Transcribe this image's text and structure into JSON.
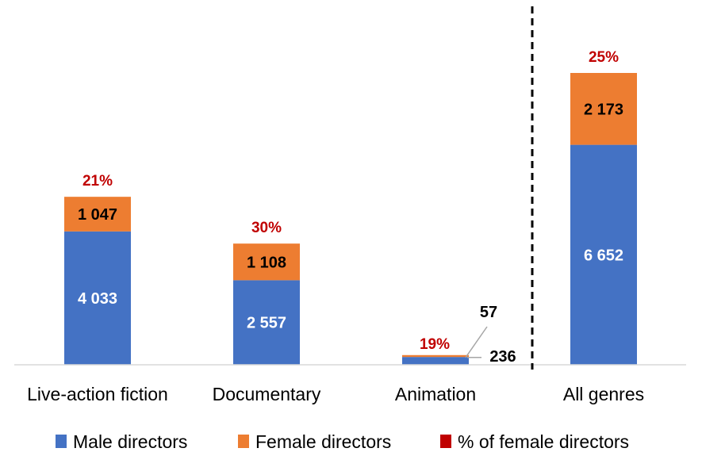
{
  "chart_data": {
    "type": "bar",
    "stacked": true,
    "categories": [
      "Live-action fiction",
      "Documentary",
      "Animation",
      "All genres"
    ],
    "series": [
      {
        "name": "Male directors",
        "values": [
          4033,
          2557,
          236,
          6652
        ],
        "labels": [
          "4 033",
          "2 557",
          "236",
          "6 652"
        ],
        "color": "#4472C4"
      },
      {
        "name": "Female directors",
        "values": [
          1047,
          1108,
          57,
          2173
        ],
        "labels": [
          "1 047",
          "1 108",
          "57",
          "2 173"
        ],
        "color": "#ED7D31"
      }
    ],
    "percent_female": {
      "name": "% of female directors",
      "labels": [
        "21%",
        "30%",
        "19%",
        "25%"
      ],
      "color": "#C00000"
    },
    "legend": [
      "Male directors",
      "Female directors",
      "% of female directors"
    ],
    "legend_position": "bottom",
    "ylim": [
      0,
      11000
    ],
    "grid": false,
    "separator_before_category": "All genres"
  }
}
